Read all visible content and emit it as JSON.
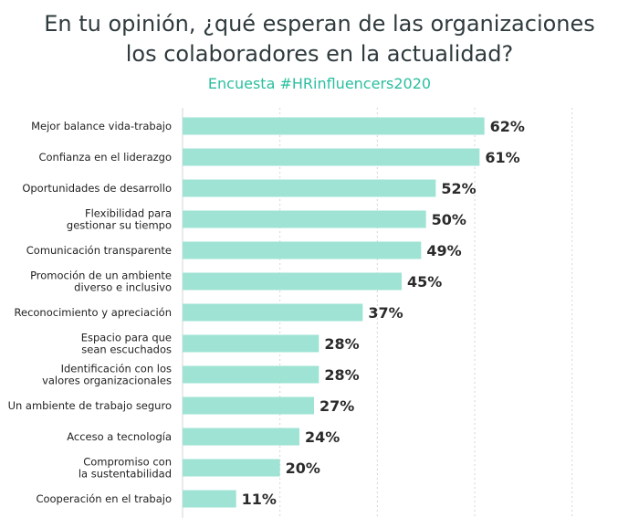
{
  "title_lines": [
    "En tu opinión, ¿qué esperan de las organizaciones",
    "los colaboradores en la actualidad?"
  ],
  "subtitle": "Encuesta #HRinfluencers2020",
  "colors": {
    "bar": "#9ee3d4",
    "title": "#2f3a3d",
    "subtitle": "#2bbf9f",
    "grid": "#d6d6d6",
    "label": "#222222",
    "value": "#2b2b2b"
  },
  "chart_data": {
    "type": "bar",
    "orientation": "horizontal",
    "categories": [
      "Mejor balance vida-trabajo",
      "Confianza en el liderazgo",
      "Oportunidades de desarrollo",
      "Flexibilidad para\ngestionar su tiempo",
      "Comunicación transparente",
      "Promoción de un ambiente\ndiverso e inclusivo",
      "Reconocimiento y apreciación",
      "Espacio para que\nsean escuchados",
      "Identificación con los\nvalores organizacionales",
      "Un ambiente de trabajo seguro",
      "Acceso a tecnología",
      "Compromiso con\nla sustentabilidad",
      "Cooperación en el trabajo"
    ],
    "values": [
      62,
      61,
      52,
      50,
      49,
      45,
      37,
      28,
      28,
      27,
      24,
      20,
      11
    ],
    "value_labels": [
      "62%",
      "61%",
      "52%",
      "50%",
      "49%",
      "45%",
      "37%",
      "28%",
      "28%",
      "27%",
      "24%",
      "20%",
      "11%"
    ],
    "xlim": [
      0,
      90
    ],
    "grid": true,
    "legend": "none"
  }
}
